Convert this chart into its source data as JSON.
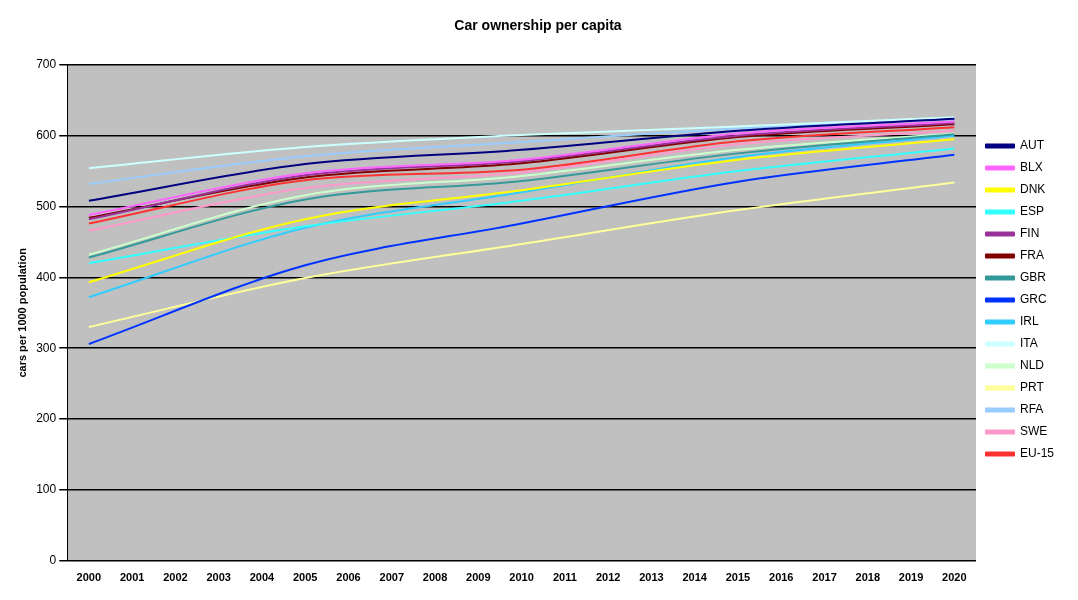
{
  "chart_data": {
    "type": "line",
    "title": "Car ownership per capita",
    "ylabel": "cars per 1000 population",
    "categories": [
      "2000",
      "2001",
      "2002",
      "2003",
      "2004",
      "2005",
      "2006",
      "2007",
      "2008",
      "2009",
      "2010",
      "2011",
      "2012",
      "2013",
      "2014",
      "2015",
      "2016",
      "2017",
      "2018",
      "2019",
      "2020"
    ],
    "ylim": [
      0,
      700
    ],
    "yticks": [
      0,
      100,
      200,
      300,
      400,
      500,
      600,
      700
    ],
    "grid": "y",
    "legend": "right",
    "marker": "none",
    "line_style": "solid",
    "series": [
      {
        "name": "AUT",
        "color": "#000080",
        "values": [
          508,
          null,
          null,
          null,
          null,
          560,
          null,
          null,
          null,
          null,
          580,
          null,
          null,
          null,
          null,
          607,
          null,
          null,
          null,
          null,
          624
        ]
      },
      {
        "name": "BLX",
        "color": "#ff66ff",
        "values": [
          488,
          null,
          null,
          null,
          null,
          547,
          null,
          null,
          null,
          null,
          566,
          null,
          null,
          null,
          null,
          603,
          null,
          null,
          null,
          null,
          620
        ]
      },
      {
        "name": "DNK",
        "color": "#ffff00",
        "values": [
          393,
          null,
          null,
          null,
          null,
          482,
          null,
          null,
          null,
          null,
          523,
          null,
          null,
          null,
          null,
          566,
          null,
          null,
          null,
          null,
          595
        ]
      },
      {
        "name": "ESP",
        "color": "#33ffff",
        "values": [
          420,
          null,
          null,
          null,
          null,
          472,
          null,
          null,
          null,
          null,
          508,
          null,
          null,
          null,
          null,
          550,
          null,
          null,
          null,
          null,
          582
        ]
      },
      {
        "name": "FIN",
        "color": "#993399",
        "values": [
          482,
          null,
          null,
          null,
          null,
          544,
          null,
          null,
          null,
          null,
          564,
          null,
          null,
          null,
          null,
          600,
          null,
          null,
          null,
          null,
          618
        ]
      },
      {
        "name": "FRA",
        "color": "#800000",
        "values": [
          484,
          null,
          null,
          null,
          null,
          541,
          null,
          null,
          null,
          null,
          561,
          null,
          null,
          null,
          null,
          598,
          null,
          null,
          null,
          null,
          616
        ]
      },
      {
        "name": "GBR",
        "color": "#339999",
        "values": [
          428,
          null,
          null,
          null,
          null,
          510,
          null,
          null,
          null,
          null,
          536,
          null,
          null,
          null,
          null,
          575,
          null,
          null,
          null,
          null,
          602
        ]
      },
      {
        "name": "GRC",
        "color": "#0033ff",
        "values": [
          306,
          null,
          null,
          null,
          null,
          417,
          null,
          null,
          null,
          null,
          476,
          null,
          null,
          null,
          null,
          535,
          null,
          null,
          null,
          null,
          573
        ]
      },
      {
        "name": "IRL",
        "color": "#33ccff",
        "values": [
          372,
          null,
          null,
          null,
          null,
          470,
          null,
          null,
          null,
          null,
          520,
          null,
          null,
          null,
          null,
          570,
          null,
          null,
          null,
          null,
          600
        ]
      },
      {
        "name": "ITA",
        "color": "#ccffff",
        "values": [
          554,
          null,
          null,
          null,
          null,
          584,
          null,
          null,
          null,
          null,
          601,
          null,
          null,
          null,
          null,
          613,
          null,
          null,
          null,
          null,
          626
        ]
      },
      {
        "name": "NLD",
        "color": "#ccffcc",
        "values": [
          432,
          null,
          null,
          null,
          null,
          516,
          null,
          null,
          null,
          null,
          543,
          null,
          null,
          null,
          null,
          580,
          null,
          null,
          null,
          null,
          603
        ]
      },
      {
        "name": "PRT",
        "color": "#ffff99",
        "values": [
          330,
          null,
          null,
          null,
          null,
          399,
          null,
          null,
          null,
          null,
          447,
          null,
          null,
          null,
          null,
          495,
          null,
          null,
          null,
          null,
          534
        ]
      },
      {
        "name": "RFA",
        "color": "#99ccff",
        "values": [
          532,
          null,
          null,
          null,
          null,
          571,
          null,
          null,
          null,
          null,
          591,
          null,
          null,
          null,
          null,
          610,
          null,
          null,
          null,
          null,
          623
        ]
      },
      {
        "name": "SWE",
        "color": "#ff99cc",
        "values": [
          466,
          null,
          null,
          null,
          null,
          526,
          null,
          null,
          null,
          null,
          548,
          null,
          null,
          null,
          null,
          588,
          null,
          null,
          null,
          null,
          607
        ]
      },
      {
        "name": "EU-15",
        "color": "#ff3333",
        "values": [
          476,
          null,
          null,
          null,
          null,
          537,
          null,
          null,
          null,
          null,
          552,
          null,
          null,
          null,
          null,
          592,
          null,
          null,
          null,
          null,
          612
        ]
      }
    ]
  }
}
